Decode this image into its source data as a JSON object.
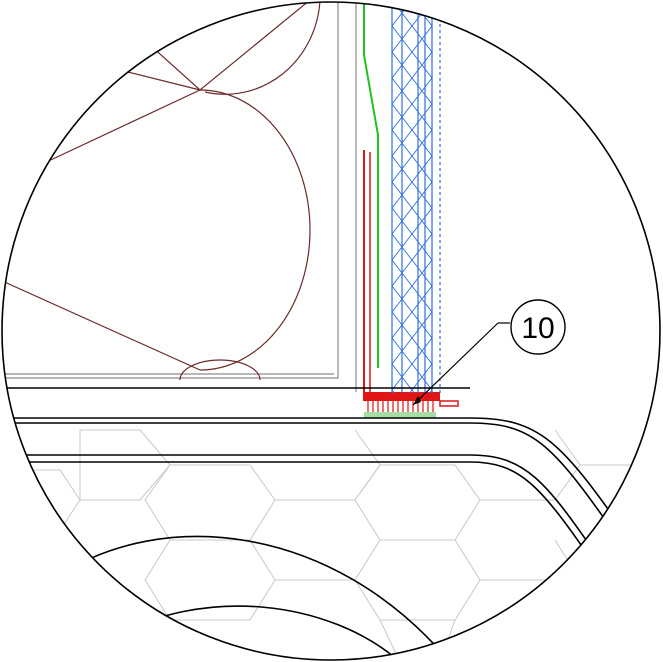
{
  "detail": {
    "callout_label": "10"
  },
  "colors": {
    "outline": "#000000",
    "wall_frame": "#8c8c8c",
    "insulation": "#6b2a2a",
    "membrane_green": "#1fc41f",
    "flashing_red": "#e01515",
    "mesh_blue": "#2f6fe0",
    "hex_pattern": "#c8c8c8"
  }
}
